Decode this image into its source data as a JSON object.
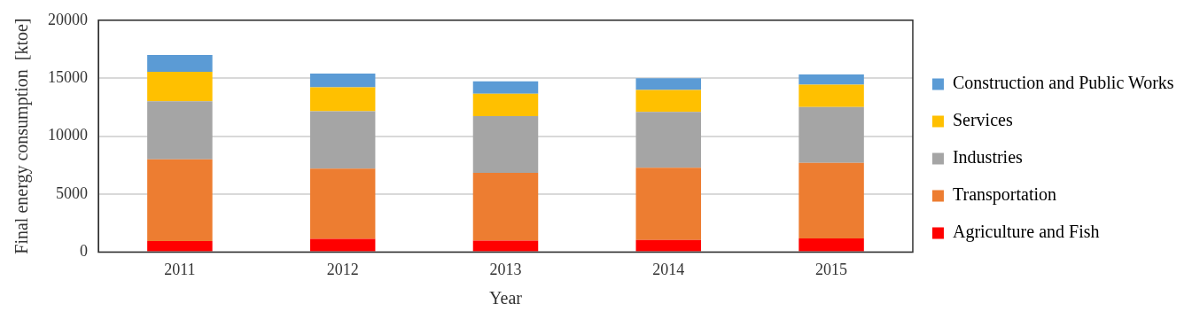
{
  "chart_data": {
    "type": "bar",
    "stacked": true,
    "xlabel": "Year",
    "ylabel": "Final energy consumption  [ktoe]",
    "categories": [
      "2011",
      "2012",
      "2013",
      "2014",
      "2015"
    ],
    "series": [
      {
        "name": "Agriculture and Fish",
        "color": "#ff0000",
        "values": [
          950,
          1140,
          980,
          1050,
          1170
        ]
      },
      {
        "name": "Transportation",
        "color": "#ed7d31",
        "values": [
          7050,
          6050,
          5850,
          6230,
          6520
        ]
      },
      {
        "name": "Industries",
        "color": "#a5a5a5",
        "values": [
          5000,
          4950,
          4900,
          4810,
          4830
        ]
      },
      {
        "name": "Services",
        "color": "#ffc000",
        "values": [
          2550,
          2070,
          1930,
          1900,
          1930
        ]
      },
      {
        "name": "Construction and Public Works",
        "color": "#5b9bd5",
        "values": [
          1450,
          1190,
          1070,
          1000,
          880
        ]
      }
    ],
    "ylim": [
      0,
      20000
    ],
    "yticks": [
      0,
      5000,
      10000,
      15000,
      20000
    ],
    "grid": "y",
    "legend": "right"
  }
}
